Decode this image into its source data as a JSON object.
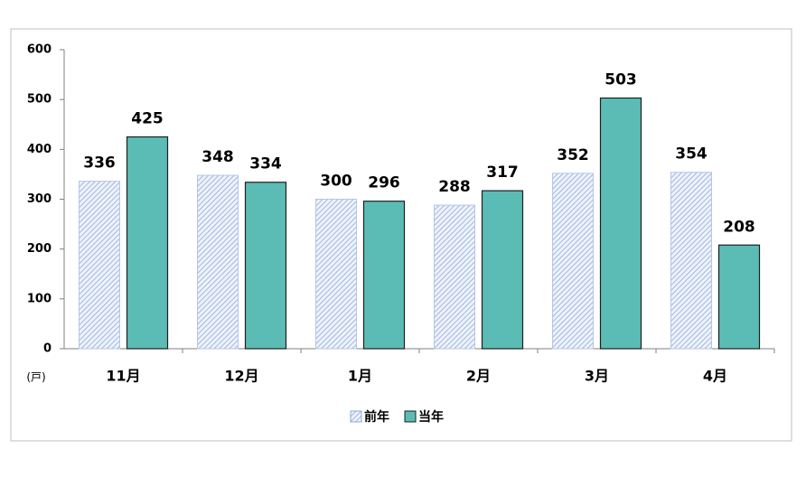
{
  "chart_data": {
    "type": "bar",
    "categories": [
      "11月",
      "12月",
      "1月",
      "2月",
      "3月",
      "4月"
    ],
    "series": [
      {
        "name": "前年",
        "color": "#8ea9db",
        "hatch": true,
        "values": [
          336,
          348,
          300,
          288,
          352,
          354
        ]
      },
      {
        "name": "当年",
        "color": "#5bbcb5",
        "hatch": false,
        "values": [
          425,
          334,
          296,
          317,
          503,
          208
        ]
      }
    ],
    "ylim": [
      0,
      600
    ],
    "yticks": [
      0,
      100,
      200,
      300,
      400,
      500,
      600
    ],
    "y_unit": "(戸)",
    "legend": "bottom"
  }
}
